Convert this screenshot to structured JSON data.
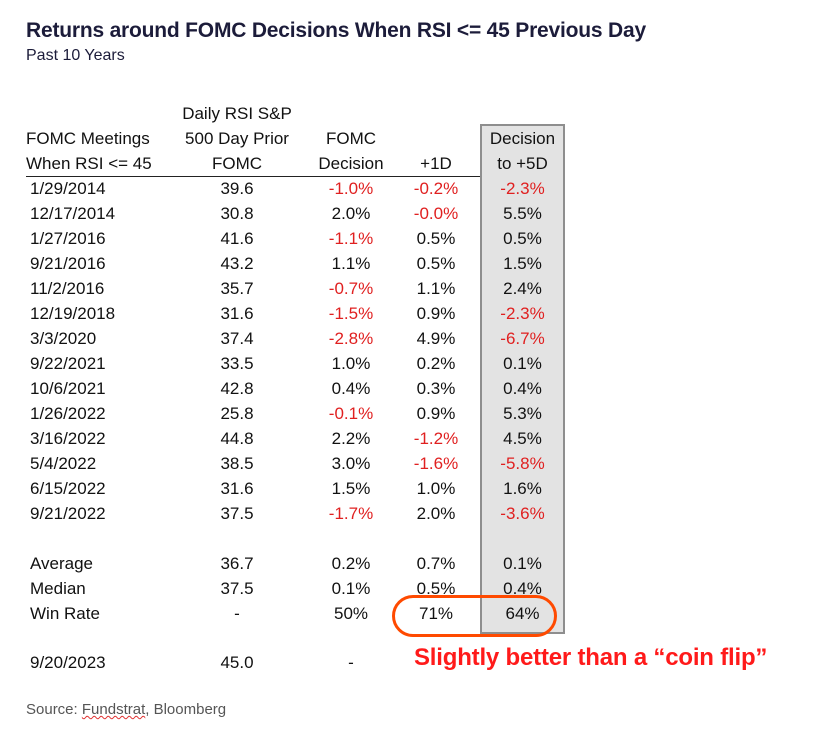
{
  "title": "Returns around FOMC Decisions When RSI <= 45 Previous Day",
  "subtitle": "Past 10 Years",
  "headers": {
    "col0": [
      "FOMC Meetings",
      "When RSI <= 45"
    ],
    "col1": [
      "Daily RSI S&P",
      "500 Day Prior",
      "FOMC"
    ],
    "col2": [
      "FOMC",
      "Decision"
    ],
    "col3": [
      "+1D"
    ],
    "col4": [
      "Decision",
      "to +5D"
    ]
  },
  "rows": [
    {
      "date": "1/29/2014",
      "rsi": "39.6",
      "fomc": "-1.0%",
      "d1": "-0.2%",
      "d5": "-2.3%"
    },
    {
      "date": "12/17/2014",
      "rsi": "30.8",
      "fomc": "2.0%",
      "d1": "-0.0%",
      "d5": "5.5%"
    },
    {
      "date": "1/27/2016",
      "rsi": "41.6",
      "fomc": "-1.1%",
      "d1": "0.5%",
      "d5": "0.5%"
    },
    {
      "date": "9/21/2016",
      "rsi": "43.2",
      "fomc": "1.1%",
      "d1": "0.5%",
      "d5": "1.5%"
    },
    {
      "date": "11/2/2016",
      "rsi": "35.7",
      "fomc": "-0.7%",
      "d1": "1.1%",
      "d5": "2.4%"
    },
    {
      "date": "12/19/2018",
      "rsi": "31.6",
      "fomc": "-1.5%",
      "d1": "0.9%",
      "d5": "-2.3%"
    },
    {
      "date": "3/3/2020",
      "rsi": "37.4",
      "fomc": "-2.8%",
      "d1": "4.9%",
      "d5": "-6.7%"
    },
    {
      "date": "9/22/2021",
      "rsi": "33.5",
      "fomc": "1.0%",
      "d1": "0.2%",
      "d5": "0.1%"
    },
    {
      "date": "10/6/2021",
      "rsi": "42.8",
      "fomc": "0.4%",
      "d1": "0.3%",
      "d5": "0.4%"
    },
    {
      "date": "1/26/2022",
      "rsi": "25.8",
      "fomc": "-0.1%",
      "d1": "0.9%",
      "d5": "5.3%"
    },
    {
      "date": "3/16/2022",
      "rsi": "44.8",
      "fomc": "2.2%",
      "d1": "-1.2%",
      "d5": "4.5%"
    },
    {
      "date": "5/4/2022",
      "rsi": "38.5",
      "fomc": "3.0%",
      "d1": "-1.6%",
      "d5": "-5.8%"
    },
    {
      "date": "6/15/2022",
      "rsi": "31.6",
      "fomc": "1.5%",
      "d1": "1.0%",
      "d5": "1.6%"
    },
    {
      "date": "9/21/2022",
      "rsi": "37.5",
      "fomc": "-1.7%",
      "d1": "2.0%",
      "d5": "-3.6%"
    }
  ],
  "summary": [
    {
      "date": "Average",
      "rsi": "36.7",
      "fomc": "0.2%",
      "d1": "0.7%",
      "d5": "0.1%"
    },
    {
      "date": "Median",
      "rsi": "37.5",
      "fomc": "0.1%",
      "d1": "0.5%",
      "d5": "0.4%"
    },
    {
      "date": "Win Rate",
      "rsi": "-",
      "fomc": "50%",
      "d1": "71%",
      "d5": "64%"
    }
  ],
  "current": {
    "date": "9/20/2023",
    "rsi": "45.0",
    "fomc": "-"
  },
  "callout": "Slightly better than a “coin flip”",
  "source": {
    "prefix": "Source: ",
    "fundstrat": "Fundstrat",
    "suffix": ", Bloomberg"
  },
  "colors": {
    "negative": "#e02020",
    "callout": "#ff1a1a",
    "oval": "#ff4a00",
    "shade": "#e3e3e3"
  }
}
